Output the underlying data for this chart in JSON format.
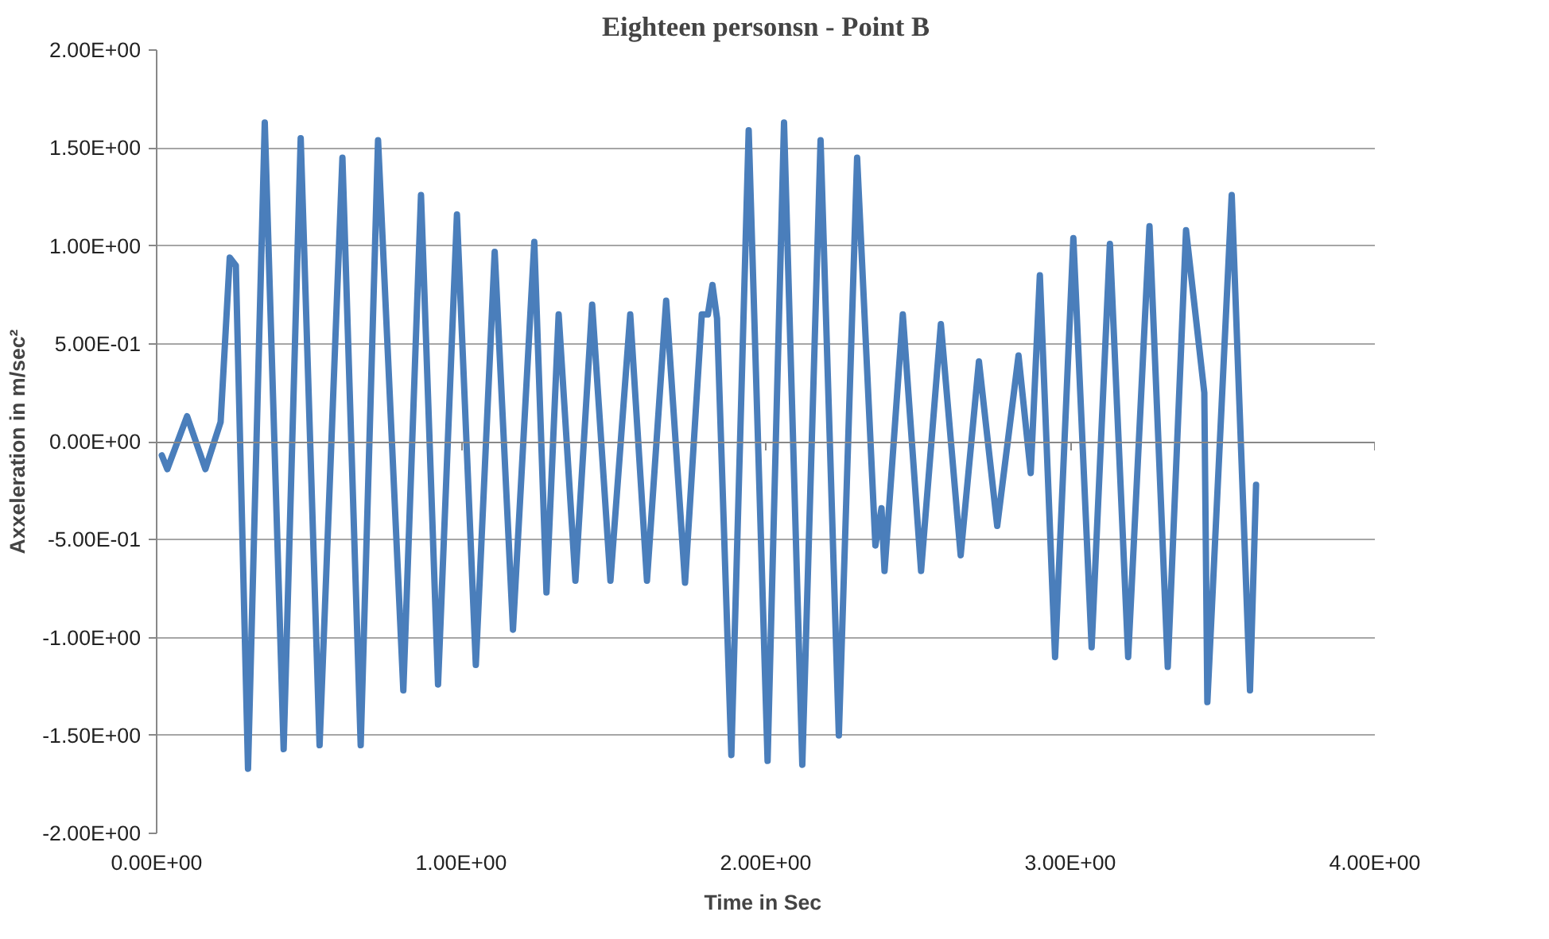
{
  "chart_data": {
    "type": "line",
    "title": "Eighteen personsn - Point B",
    "xlabel": "Time  in Sec",
    "ylabel": "Axxeleration in m/sec²",
    "xlim": [
      0,
      4
    ],
    "ylim": [
      -2,
      2
    ],
    "xticks": [
      {
        "value": 0,
        "label": "0.00E+00"
      },
      {
        "value": 1,
        "label": "1.00E+00"
      },
      {
        "value": 2,
        "label": "2.00E+00"
      },
      {
        "value": 3,
        "label": "3.00E+00"
      },
      {
        "value": 4,
        "label": "4.00E+00"
      }
    ],
    "yticks": [
      {
        "value": 2,
        "label": "2.00E+00"
      },
      {
        "value": 1.5,
        "label": "1.50E+00"
      },
      {
        "value": 1,
        "label": "1.00E+00"
      },
      {
        "value": 0.5,
        "label": "5.00E-01"
      },
      {
        "value": 0,
        "label": "0.00E+00"
      },
      {
        "value": -0.5,
        "label": "-5.00E-01"
      },
      {
        "value": -1,
        "label": "-1.00E+00"
      },
      {
        "value": -1.5,
        "label": "-1.50E+00"
      },
      {
        "value": -2,
        "label": "-2.00E+00"
      }
    ],
    "grid": "y",
    "marker": "none",
    "line_style": "solid",
    "series": [
      {
        "color": "#4a7ebb",
        "x": [
          0.017,
          0.035,
          0.1,
          0.16,
          0.21,
          0.24,
          0.26,
          0.3,
          0.355,
          0.417,
          0.473,
          0.535,
          0.61,
          0.67,
          0.727,
          0.81,
          0.868,
          0.924,
          0.986,
          1.048,
          1.11,
          1.17,
          1.24,
          1.28,
          1.32,
          1.375,
          1.43,
          1.49,
          1.555,
          1.61,
          1.673,
          1.735,
          1.79,
          1.81,
          1.825,
          1.84,
          1.887,
          1.944,
          2.006,
          2.06,
          2.12,
          2.18,
          2.24,
          2.3,
          2.36,
          2.38,
          2.39,
          2.45,
          2.51,
          2.575,
          2.64,
          2.7,
          2.76,
          2.83,
          2.87,
          2.9,
          2.95,
          3.01,
          3.07,
          3.13,
          3.19,
          3.26,
          3.32,
          3.38,
          3.44,
          3.45,
          3.53,
          3.59,
          3.61
        ],
        "values": [
          -0.07,
          -0.14,
          0.13,
          -0.14,
          0.1,
          0.94,
          0.9,
          -1.67,
          1.63,
          -1.57,
          1.55,
          -1.55,
          1.45,
          -1.55,
          1.54,
          -1.27,
          1.26,
          -1.24,
          1.16,
          -1.14,
          0.97,
          -0.96,
          1.02,
          -0.77,
          0.65,
          -0.71,
          0.7,
          -0.71,
          0.65,
          -0.71,
          0.72,
          -0.72,
          0.65,
          0.65,
          0.8,
          0.63,
          -1.6,
          1.59,
          -1.63,
          1.63,
          -1.65,
          1.54,
          -1.5,
          1.45,
          -0.53,
          -0.34,
          -0.66,
          0.65,
          -0.66,
          0.6,
          -0.58,
          0.41,
          -0.43,
          0.44,
          -0.16,
          0.85,
          -1.1,
          1.04,
          -1.05,
          1.01,
          -1.1,
          1.1,
          -1.15,
          1.08,
          0.25,
          -1.33,
          1.26,
          -1.27,
          -0.22
        ]
      }
    ]
  }
}
